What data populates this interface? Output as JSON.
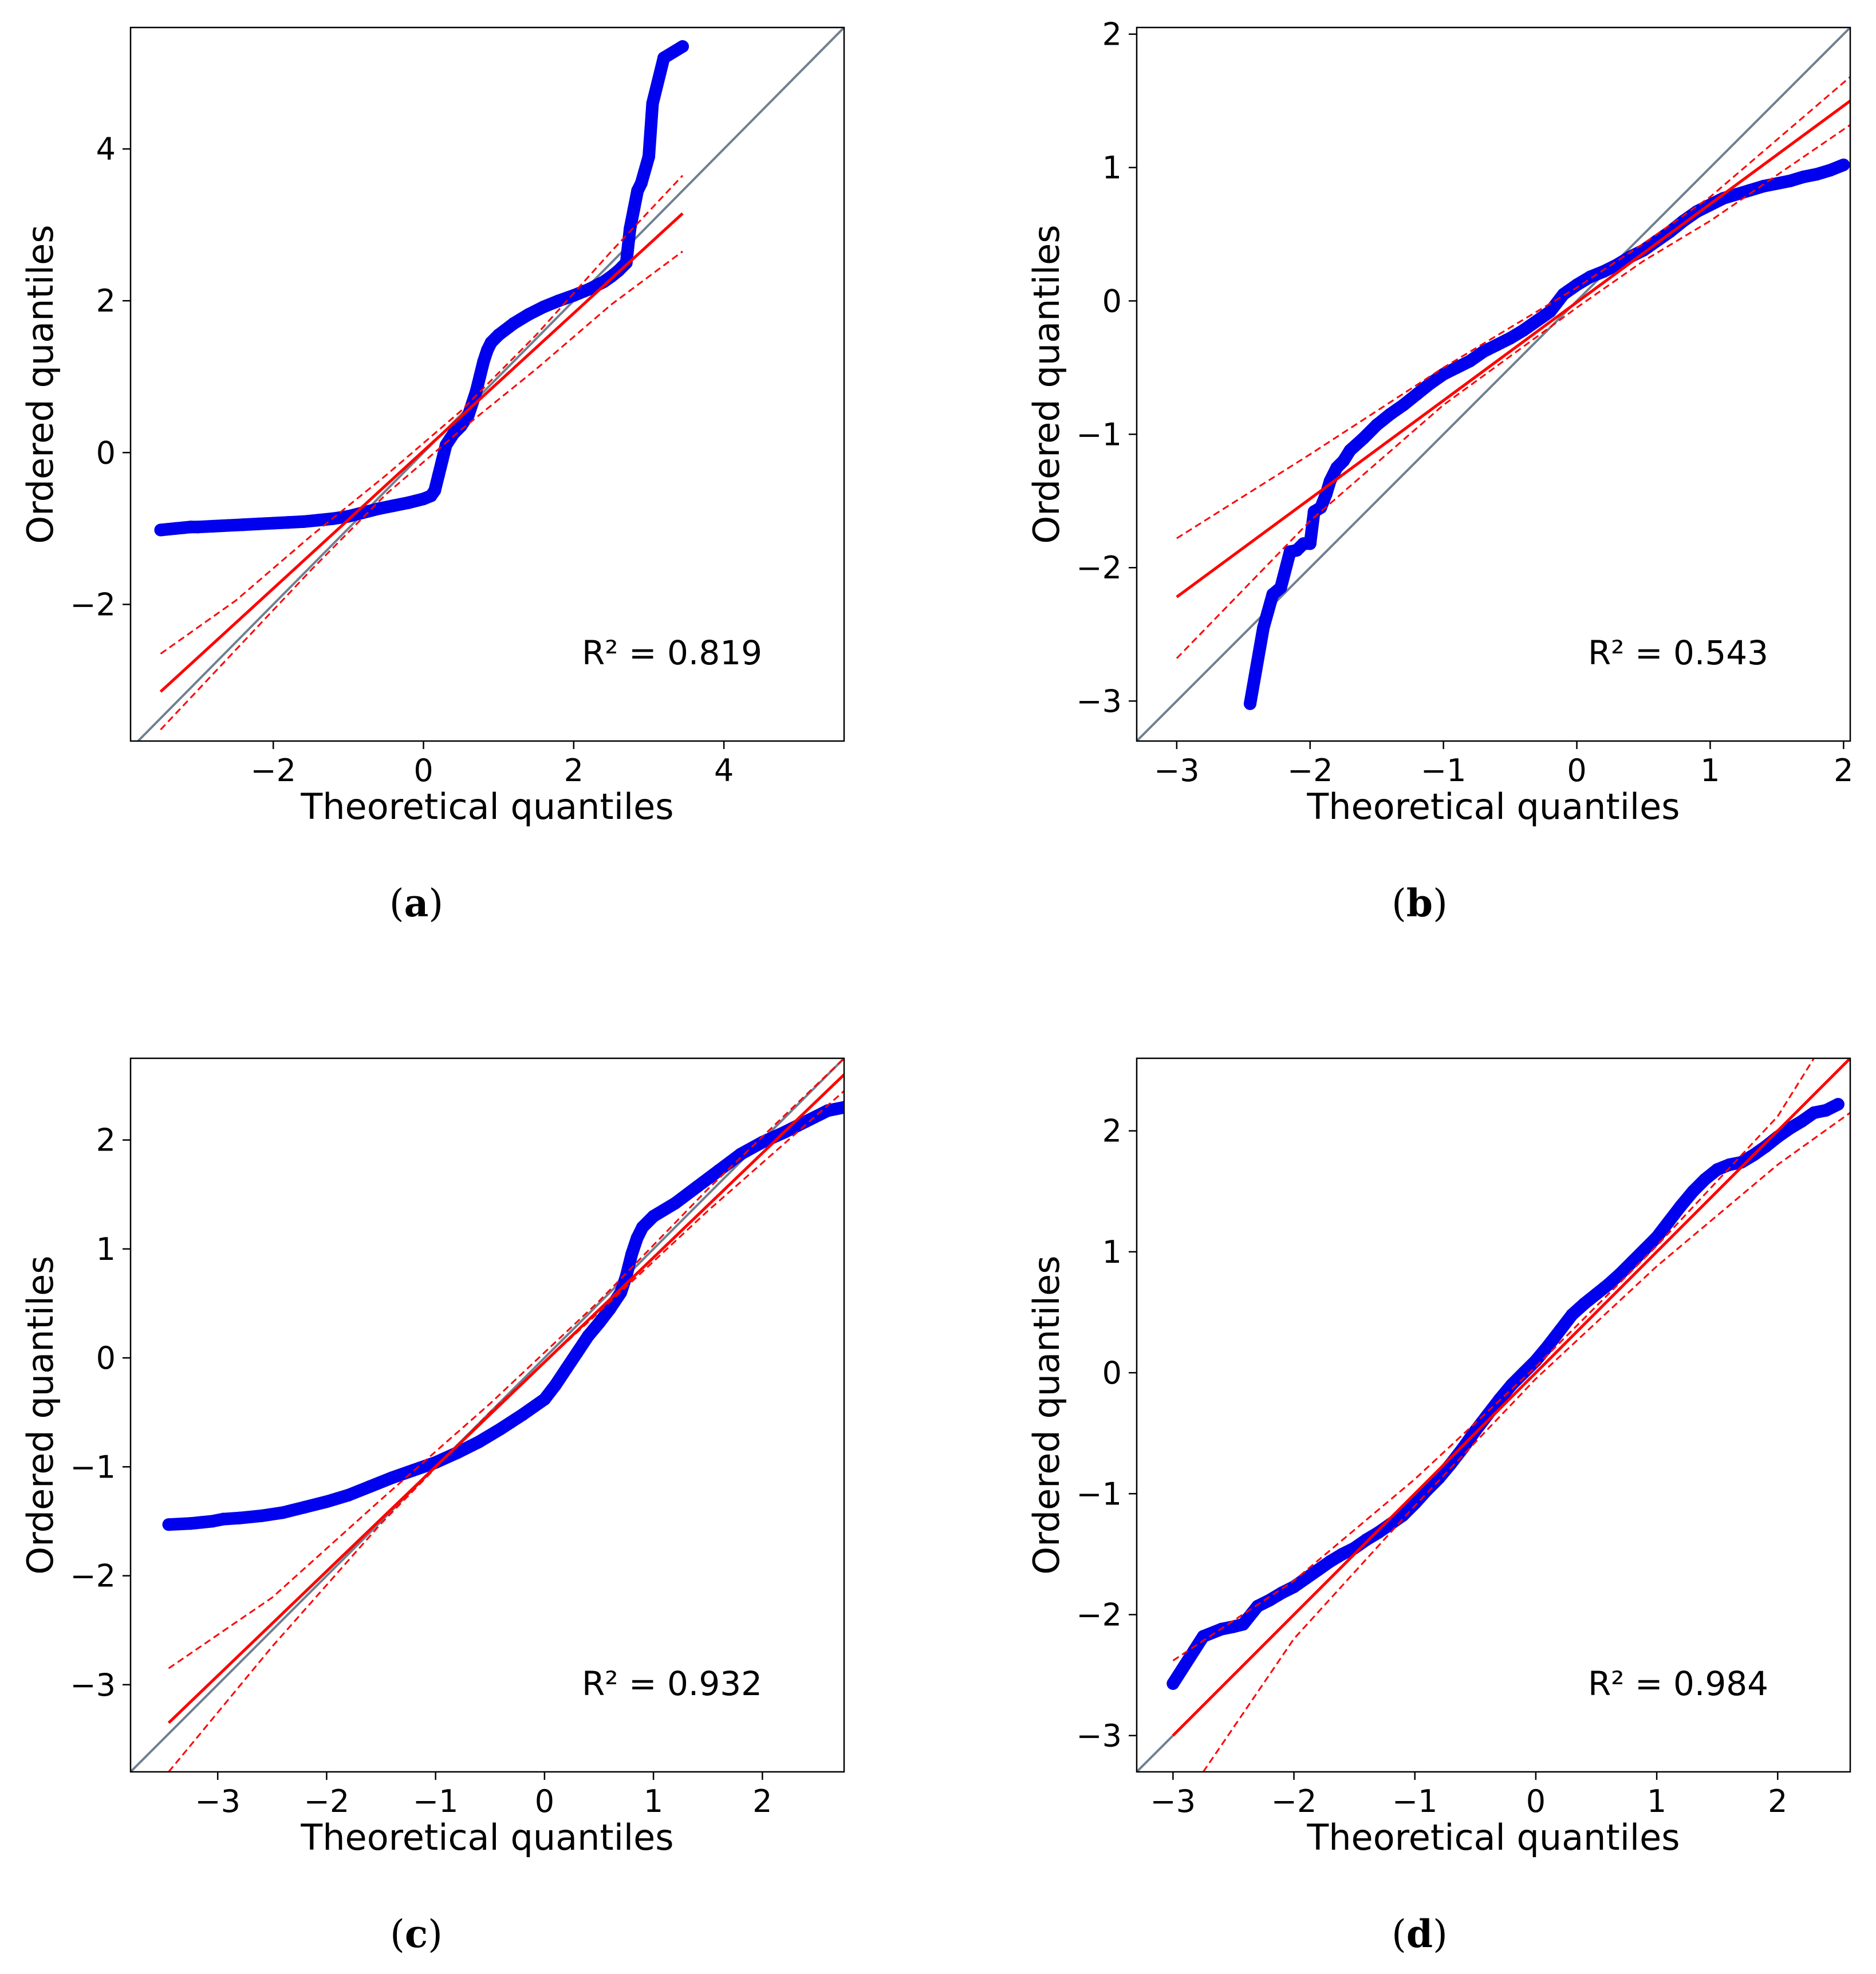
{
  "figure_captions": [
    "(a)",
    "(b)",
    "(c)",
    "(d)"
  ],
  "chart_data": [
    {
      "type": "scatter",
      "panel": "(a)",
      "caption_letter": "a",
      "xlabel": "Theoretical quantiles",
      "ylabel": "Ordered quantiles",
      "xlim": [
        -3.9,
        5.6
      ],
      "ylim": [
        -3.8,
        5.6
      ],
      "xticks": [
        -2,
        0,
        2,
        4
      ],
      "yticks": [
        -2,
        0,
        2,
        4
      ],
      "r2_label": "R² = 0.819",
      "r2_value": 0.819,
      "fit_line": {
        "x": [
          -3.5,
          3.45
        ],
        "y": [
          -3.15,
          3.15
        ]
      },
      "band_upper": [
        [
          -3.5,
          -2.65
        ],
        [
          -2.5,
          -1.95
        ],
        [
          -1.5,
          -1.1
        ],
        [
          -0.5,
          -0.3
        ],
        [
          0.5,
          0.55
        ],
        [
          1.5,
          1.55
        ],
        [
          2.5,
          2.65
        ],
        [
          3.45,
          3.65
        ]
      ],
      "band_lower": [
        [
          -3.5,
          -3.65
        ],
        [
          -2.5,
          -2.6
        ],
        [
          -1.5,
          -1.55
        ],
        [
          -0.5,
          -0.55
        ],
        [
          0.5,
          0.3
        ],
        [
          1.5,
          1.1
        ],
        [
          2.5,
          1.95
        ],
        [
          3.45,
          2.65
        ]
      ],
      "points": [
        [
          -3.5,
          -1.02
        ],
        [
          -3.3,
          -1.0
        ],
        [
          -3.2,
          -0.99
        ],
        [
          -3.1,
          -0.98
        ],
        [
          -3.0,
          -0.98
        ],
        [
          -2.8,
          -0.97
        ],
        [
          -2.6,
          -0.96
        ],
        [
          -2.4,
          -0.95
        ],
        [
          -2.2,
          -0.94
        ],
        [
          -2.0,
          -0.93
        ],
        [
          -1.8,
          -0.92
        ],
        [
          -1.6,
          -0.91
        ],
        [
          -1.4,
          -0.89
        ],
        [
          -1.2,
          -0.87
        ],
        [
          -1.0,
          -0.84
        ],
        [
          -0.8,
          -0.79
        ],
        [
          -0.6,
          -0.74
        ],
        [
          -0.4,
          -0.7
        ],
        [
          -0.2,
          -0.66
        ],
        [
          0.0,
          -0.61
        ],
        [
          0.1,
          -0.57
        ],
        [
          0.15,
          -0.5
        ],
        [
          0.2,
          -0.3
        ],
        [
          0.25,
          -0.1
        ],
        [
          0.3,
          0.1
        ],
        [
          0.4,
          0.25
        ],
        [
          0.5,
          0.35
        ],
        [
          0.6,
          0.5
        ],
        [
          0.7,
          0.8
        ],
        [
          0.75,
          1.0
        ],
        [
          0.8,
          1.2
        ],
        [
          0.85,
          1.35
        ],
        [
          0.9,
          1.45
        ],
        [
          1.0,
          1.55
        ],
        [
          1.2,
          1.7
        ],
        [
          1.4,
          1.82
        ],
        [
          1.6,
          1.92
        ],
        [
          1.8,
          2.0
        ],
        [
          2.0,
          2.07
        ],
        [
          2.2,
          2.15
        ],
        [
          2.4,
          2.25
        ],
        [
          2.5,
          2.32
        ],
        [
          2.6,
          2.4
        ],
        [
          2.7,
          2.5
        ],
        [
          2.75,
          2.95
        ],
        [
          2.8,
          3.2
        ],
        [
          2.85,
          3.45
        ],
        [
          2.9,
          3.55
        ],
        [
          3.0,
          3.9
        ],
        [
          3.05,
          4.6
        ],
        [
          3.2,
          5.2
        ],
        [
          3.45,
          5.35
        ]
      ]
    },
    {
      "type": "scatter",
      "panel": "(b)",
      "caption_letter": "b",
      "xlabel": "Theoretical quantiles",
      "ylabel": "Ordered quantiles",
      "xlim": [
        -3.3,
        2.05
      ],
      "ylim": [
        -3.3,
        2.05
      ],
      "xticks": [
        -3,
        -2,
        -1,
        0,
        1,
        2
      ],
      "yticks": [
        -3,
        -2,
        -1,
        0,
        1,
        2
      ],
      "r2_label": "R² = 0.543",
      "r2_value": 0.543,
      "fit_line": {
        "x": [
          -3.0,
          2.05
        ],
        "y": [
          -2.22,
          1.5
        ]
      },
      "band_upper": [
        [
          -3.0,
          -1.78
        ],
        [
          -2.0,
          -1.15
        ],
        [
          -1.0,
          -0.5
        ],
        [
          0.0,
          0.1
        ],
        [
          0.5,
          0.43
        ],
        [
          1.0,
          0.78
        ],
        [
          2.05,
          1.68
        ]
      ],
      "band_lower": [
        [
          -3.0,
          -2.68
        ],
        [
          -2.0,
          -1.65
        ],
        [
          -1.0,
          -0.78
        ],
        [
          0.0,
          -0.05
        ],
        [
          0.5,
          0.3
        ],
        [
          1.0,
          0.6
        ],
        [
          2.05,
          1.32
        ]
      ],
      "points": [
        [
          -2.45,
          -3.02
        ],
        [
          -2.35,
          -2.45
        ],
        [
          -2.28,
          -2.2
        ],
        [
          -2.22,
          -2.15
        ],
        [
          -2.15,
          -1.88
        ],
        [
          -2.1,
          -1.87
        ],
        [
          -2.05,
          -1.82
        ],
        [
          -2.0,
          -1.82
        ],
        [
          -1.97,
          -1.58
        ],
        [
          -1.92,
          -1.55
        ],
        [
          -1.88,
          -1.45
        ],
        [
          -1.85,
          -1.35
        ],
        [
          -1.8,
          -1.25
        ],
        [
          -1.75,
          -1.2
        ],
        [
          -1.7,
          -1.12
        ],
        [
          -1.6,
          -1.03
        ],
        [
          -1.5,
          -0.93
        ],
        [
          -1.4,
          -0.85
        ],
        [
          -1.3,
          -0.78
        ],
        [
          -1.2,
          -0.7
        ],
        [
          -1.1,
          -0.62
        ],
        [
          -1.0,
          -0.55
        ],
        [
          -0.9,
          -0.5
        ],
        [
          -0.8,
          -0.45
        ],
        [
          -0.7,
          -0.38
        ],
        [
          -0.6,
          -0.33
        ],
        [
          -0.5,
          -0.28
        ],
        [
          -0.4,
          -0.22
        ],
        [
          -0.3,
          -0.15
        ],
        [
          -0.2,
          -0.08
        ],
        [
          -0.1,
          0.05
        ],
        [
          0.0,
          0.12
        ],
        [
          0.1,
          0.18
        ],
        [
          0.2,
          0.22
        ],
        [
          0.3,
          0.27
        ],
        [
          0.4,
          0.33
        ],
        [
          0.5,
          0.38
        ],
        [
          0.6,
          0.45
        ],
        [
          0.7,
          0.52
        ],
        [
          0.8,
          0.6
        ],
        [
          0.9,
          0.67
        ],
        [
          1.0,
          0.72
        ],
        [
          1.1,
          0.77
        ],
        [
          1.2,
          0.8
        ],
        [
          1.3,
          0.83
        ],
        [
          1.4,
          0.86
        ],
        [
          1.5,
          0.88
        ],
        [
          1.6,
          0.9
        ],
        [
          1.7,
          0.93
        ],
        [
          1.8,
          0.95
        ],
        [
          1.9,
          0.98
        ],
        [
          2.0,
          1.02
        ]
      ]
    },
    {
      "type": "scatter",
      "panel": "(c)",
      "caption_letter": "c",
      "xlabel": "Theoretical quantiles",
      "ylabel": "Ordered quantiles",
      "xlim": [
        -3.8,
        2.75
      ],
      "ylim": [
        -3.8,
        2.75
      ],
      "xticks": [
        -3,
        -2,
        -1,
        0,
        1,
        2
      ],
      "yticks": [
        -3,
        -2,
        -1,
        0,
        1,
        2
      ],
      "r2_label": "R² = 0.932",
      "r2_value": 0.932,
      "fit_line": {
        "x": [
          -3.45,
          2.75
        ],
        "y": [
          -3.35,
          2.6
        ]
      },
      "band_upper": [
        [
          -3.45,
          -2.85
        ],
        [
          -2.5,
          -2.2
        ],
        [
          -1.5,
          -1.3
        ],
        [
          -0.5,
          -0.42
        ],
        [
          0.5,
          0.52
        ],
        [
          1.5,
          1.55
        ],
        [
          2.75,
          2.75
        ]
      ],
      "band_lower": [
        [
          -3.45,
          -3.8
        ],
        [
          -2.5,
          -2.65
        ],
        [
          -1.5,
          -1.52
        ],
        [
          -0.5,
          -0.5
        ],
        [
          0.5,
          0.42
        ],
        [
          1.5,
          1.35
        ],
        [
          2.75,
          2.45
        ]
      ],
      "points": [
        [
          -3.45,
          -1.53
        ],
        [
          -3.25,
          -1.52
        ],
        [
          -3.15,
          -1.51
        ],
        [
          -3.05,
          -1.5
        ],
        [
          -2.95,
          -1.48
        ],
        [
          -2.8,
          -1.47
        ],
        [
          -2.6,
          -1.45
        ],
        [
          -2.4,
          -1.42
        ],
        [
          -2.2,
          -1.37
        ],
        [
          -2.0,
          -1.32
        ],
        [
          -1.8,
          -1.26
        ],
        [
          -1.6,
          -1.18
        ],
        [
          -1.4,
          -1.1
        ],
        [
          -1.2,
          -1.03
        ],
        [
          -1.0,
          -0.96
        ],
        [
          -0.8,
          -0.87
        ],
        [
          -0.6,
          -0.77
        ],
        [
          -0.4,
          -0.65
        ],
        [
          -0.2,
          -0.52
        ],
        [
          0.0,
          -0.38
        ],
        [
          0.1,
          -0.25
        ],
        [
          0.2,
          -0.1
        ],
        [
          0.3,
          0.05
        ],
        [
          0.4,
          0.2
        ],
        [
          0.5,
          0.32
        ],
        [
          0.6,
          0.45
        ],
        [
          0.7,
          0.6
        ],
        [
          0.75,
          0.75
        ],
        [
          0.8,
          0.95
        ],
        [
          0.85,
          1.1
        ],
        [
          0.9,
          1.2
        ],
        [
          1.0,
          1.3
        ],
        [
          1.2,
          1.42
        ],
        [
          1.4,
          1.57
        ],
        [
          1.6,
          1.72
        ],
        [
          1.8,
          1.87
        ],
        [
          2.0,
          1.98
        ],
        [
          2.2,
          2.07
        ],
        [
          2.4,
          2.17
        ],
        [
          2.6,
          2.27
        ],
        [
          2.75,
          2.3
        ]
      ]
    },
    {
      "type": "scatter",
      "panel": "(d)",
      "caption_letter": "d",
      "xlabel": "Theoretical quantiles",
      "ylabel": "Ordered quantiles",
      "xlim": [
        -3.3,
        2.6
      ],
      "ylim": [
        -3.3,
        2.6
      ],
      "xticks": [
        -3,
        -2,
        -1,
        0,
        1,
        2
      ],
      "yticks": [
        -3,
        -2,
        -1,
        0,
        1,
        2
      ],
      "r2_label": "R² = 0.984",
      "r2_value": 0.984,
      "fit_line": {
        "x": [
          -3.0,
          2.6
        ],
        "y": [
          -3.0,
          2.6
        ]
      },
      "band_upper": [
        [
          -3.0,
          -2.38
        ],
        [
          -2.0,
          -1.72
        ],
        [
          -1.0,
          -0.88
        ],
        [
          0.0,
          0.05
        ],
        [
          1.0,
          1.05
        ],
        [
          2.0,
          2.12
        ],
        [
          2.3,
          2.6
        ]
      ],
      "band_lower": [
        [
          -2.75,
          -3.3
        ],
        [
          -2.0,
          -2.2
        ],
        [
          -1.0,
          -1.1
        ],
        [
          0.0,
          -0.05
        ],
        [
          1.0,
          0.88
        ],
        [
          2.0,
          1.72
        ],
        [
          2.6,
          2.15
        ]
      ],
      "points": [
        [
          -3.0,
          -2.57
        ],
        [
          -2.75,
          -2.18
        ],
        [
          -2.6,
          -2.12
        ],
        [
          -2.5,
          -2.1
        ],
        [
          -2.42,
          -2.08
        ],
        [
          -2.3,
          -1.93
        ],
        [
          -2.2,
          -1.88
        ],
        [
          -2.1,
          -1.82
        ],
        [
          -2.0,
          -1.77
        ],
        [
          -1.9,
          -1.7
        ],
        [
          -1.8,
          -1.63
        ],
        [
          -1.7,
          -1.56
        ],
        [
          -1.6,
          -1.5
        ],
        [
          -1.5,
          -1.45
        ],
        [
          -1.4,
          -1.38
        ],
        [
          -1.3,
          -1.32
        ],
        [
          -1.2,
          -1.25
        ],
        [
          -1.1,
          -1.18
        ],
        [
          -1.0,
          -1.08
        ],
        [
          -0.9,
          -0.97
        ],
        [
          -0.8,
          -0.87
        ],
        [
          -0.7,
          -0.75
        ],
        [
          -0.6,
          -0.62
        ],
        [
          -0.5,
          -0.48
        ],
        [
          -0.4,
          -0.35
        ],
        [
          -0.3,
          -0.22
        ],
        [
          -0.2,
          -0.1
        ],
        [
          -0.1,
          0.0
        ],
        [
          0.0,
          0.1
        ],
        [
          0.1,
          0.22
        ],
        [
          0.2,
          0.35
        ],
        [
          0.3,
          0.48
        ],
        [
          0.4,
          0.57
        ],
        [
          0.5,
          0.65
        ],
        [
          0.6,
          0.73
        ],
        [
          0.7,
          0.82
        ],
        [
          0.8,
          0.92
        ],
        [
          0.9,
          1.02
        ],
        [
          1.0,
          1.12
        ],
        [
          1.1,
          1.25
        ],
        [
          1.2,
          1.38
        ],
        [
          1.3,
          1.5
        ],
        [
          1.4,
          1.6
        ],
        [
          1.5,
          1.68
        ],
        [
          1.6,
          1.72
        ],
        [
          1.7,
          1.74
        ],
        [
          1.8,
          1.8
        ],
        [
          1.9,
          1.87
        ],
        [
          2.0,
          1.95
        ],
        [
          2.1,
          2.02
        ],
        [
          2.2,
          2.08
        ],
        [
          2.3,
          2.15
        ],
        [
          2.4,
          2.17
        ],
        [
          2.5,
          2.22
        ]
      ]
    }
  ]
}
